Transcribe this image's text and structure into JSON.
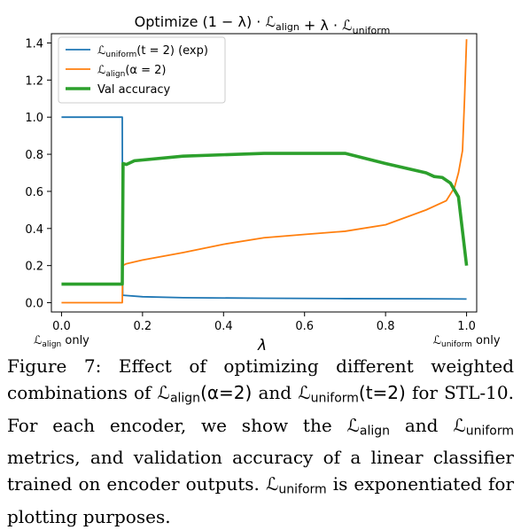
{
  "chart_data": {
    "type": "line",
    "title": "Optimize (1 − λ) · ℒalign + λ · ℒuniform",
    "xlabel": "λ",
    "ylabel": "",
    "xlim": [
      -0.025,
      1.025
    ],
    "ylim": [
      -0.05,
      1.45
    ],
    "xticks": [
      "0.0",
      "0.2",
      "0.4",
      "0.6",
      "0.8",
      "1.0"
    ],
    "yticks": [
      "0.0",
      "0.2",
      "0.4",
      "0.6",
      "0.8",
      "1.0",
      "1.2",
      "1.4"
    ],
    "x_annotations": [
      {
        "text_main": "ℒ",
        "text_sub": "align",
        "text_after": " only",
        "x": 0.0
      },
      {
        "text_main": "ℒ",
        "text_sub": "uniform",
        "text_after": " only",
        "x": 1.0
      }
    ],
    "legend_position": "upper-left",
    "grid": false,
    "series": [
      {
        "name": "ℒuniform(t = 2) (exp)",
        "legend_main": "ℒ",
        "legend_sub": "uniform",
        "legend_after": "(t = 2) (exp)",
        "color": "#1f77b4",
        "width": 1.8,
        "points": [
          [
            0.0,
            1.0
          ],
          [
            0.15,
            1.0
          ],
          [
            0.151,
            0.04
          ],
          [
            0.2,
            0.032
          ],
          [
            0.3,
            0.027
          ],
          [
            0.5,
            0.024
          ],
          [
            0.7,
            0.022
          ],
          [
            0.9,
            0.021
          ],
          [
            1.0,
            0.02
          ]
        ]
      },
      {
        "name": "ℒalign(α = 2)",
        "legend_main": "ℒ",
        "legend_sub": "align",
        "legend_after": "(α = 2)",
        "color": "#ff7f0e",
        "width": 1.8,
        "points": [
          [
            0.0,
            0.0
          ],
          [
            0.15,
            0.0
          ],
          [
            0.151,
            0.2
          ],
          [
            0.16,
            0.21
          ],
          [
            0.2,
            0.23
          ],
          [
            0.3,
            0.27
          ],
          [
            0.4,
            0.315
          ],
          [
            0.5,
            0.35
          ],
          [
            0.6,
            0.368
          ],
          [
            0.7,
            0.385
          ],
          [
            0.8,
            0.42
          ],
          [
            0.9,
            0.5
          ],
          [
            0.95,
            0.55
          ],
          [
            0.97,
            0.62
          ],
          [
            0.98,
            0.7
          ],
          [
            0.99,
            0.82
          ],
          [
            0.995,
            1.1
          ],
          [
            1.0,
            1.42
          ]
        ]
      },
      {
        "name": "Val accuracy",
        "legend_main": "Val accuracy",
        "legend_sub": "",
        "legend_after": "",
        "color": "#2ca02c",
        "width": 3.6,
        "points": [
          [
            0.0,
            0.1
          ],
          [
            0.15,
            0.1
          ],
          [
            0.152,
            0.75
          ],
          [
            0.16,
            0.745
          ],
          [
            0.18,
            0.765
          ],
          [
            0.3,
            0.79
          ],
          [
            0.5,
            0.805
          ],
          [
            0.6,
            0.805
          ],
          [
            0.7,
            0.805
          ],
          [
            0.8,
            0.75
          ],
          [
            0.9,
            0.7
          ],
          [
            0.92,
            0.68
          ],
          [
            0.94,
            0.675
          ],
          [
            0.96,
            0.645
          ],
          [
            0.98,
            0.57
          ],
          [
            1.0,
            0.2
          ]
        ]
      }
    ]
  },
  "caption": {
    "figure_label": "Figure 7:",
    "part1": " Effect of optimizing different weighted combinations of ",
    "sym_align": "ℒ",
    "sub_align": "align",
    "arg_align": "(α=2)",
    "and1": " and ",
    "sym_uniform": "ℒ",
    "sub_uniform": "uniform",
    "arg_uniform": "(t=2)",
    "part2": " for STL-10. For each encoder, we show the ",
    "sym_align2": "ℒ",
    "sub_align2": "align",
    "and2": " and ",
    "sym_uniform2": "ℒ",
    "sub_uniform2": "uniform",
    "part3": " metrics, and validation accuracy of a linear classifier trained on encoder outputs. ",
    "sym_uniform3": "ℒ",
    "sub_uniform3": "uniform",
    "part4": " is exponentiated for plotting purposes."
  }
}
